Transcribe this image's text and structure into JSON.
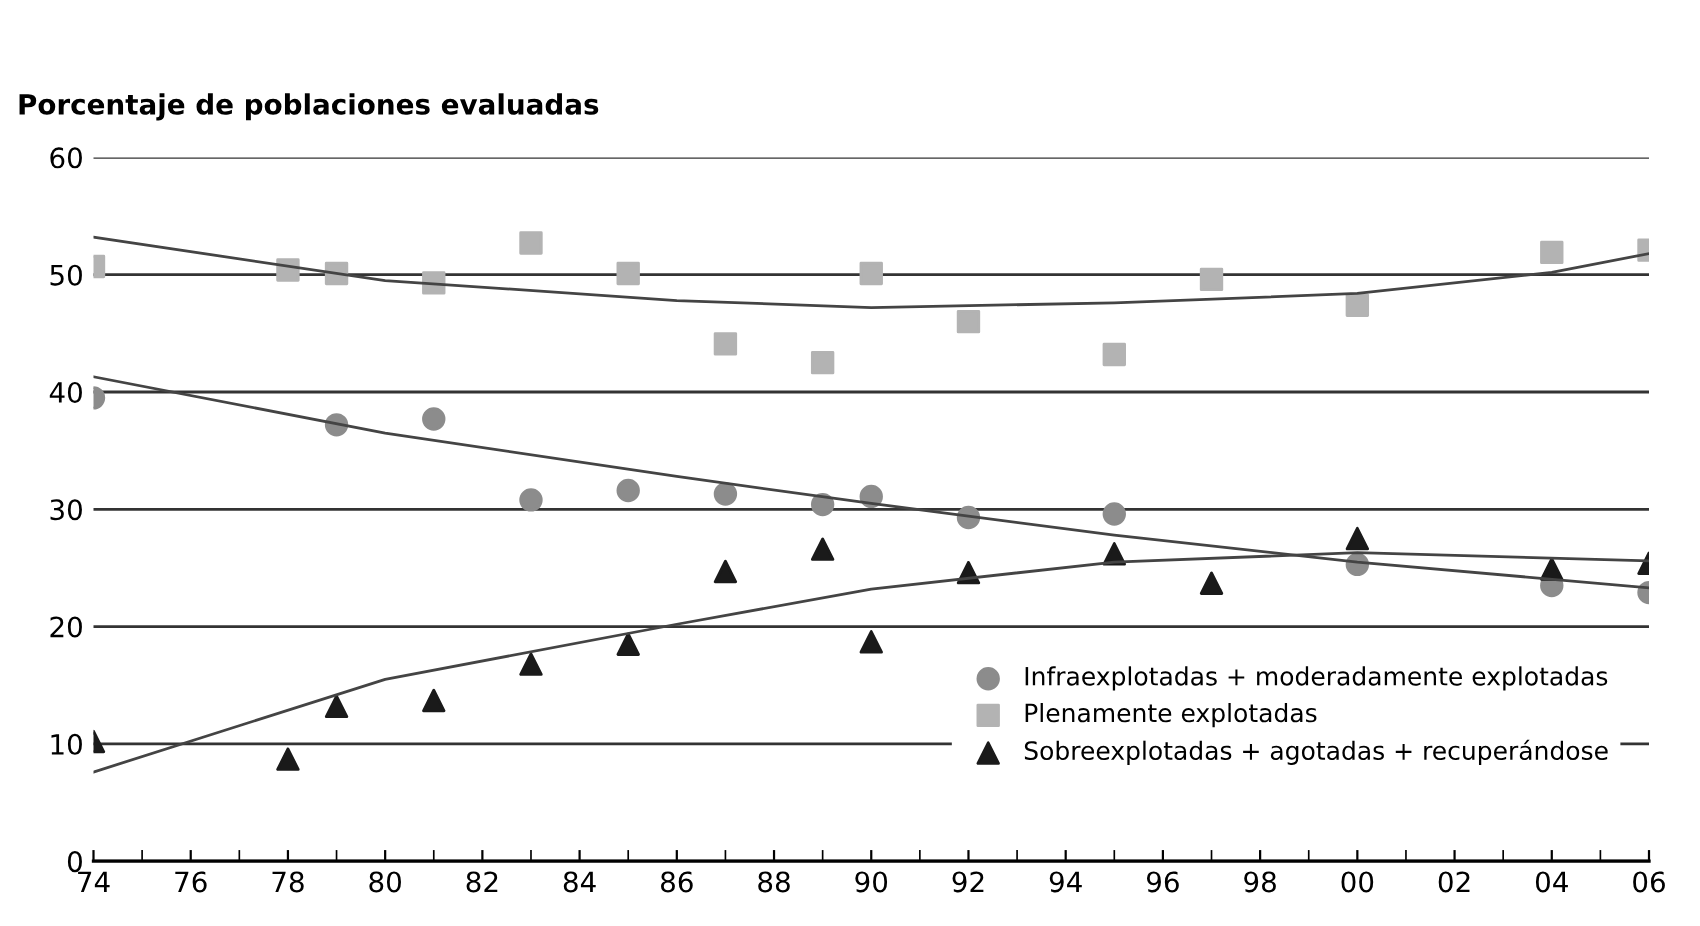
{
  "chart_data": {
    "type": "scatter",
    "title": "Porcentaje de poblaciones evaluadas",
    "xlim": [
      1974,
      2006
    ],
    "xticks": [
      {
        "value": 1974,
        "label": "74"
      },
      {
        "value": 1976,
        "label": "76"
      },
      {
        "value": 1978,
        "label": "78"
      },
      {
        "value": 1980,
        "label": "80"
      },
      {
        "value": 1982,
        "label": "82"
      },
      {
        "value": 1984,
        "label": "84"
      },
      {
        "value": 1986,
        "label": "86"
      },
      {
        "value": 1988,
        "label": "88"
      },
      {
        "value": 1990,
        "label": "90"
      },
      {
        "value": 1992,
        "label": "92"
      },
      {
        "value": 1994,
        "label": "94"
      },
      {
        "value": 1996,
        "label": "96"
      },
      {
        "value": 1998,
        "label": "98"
      },
      {
        "value": 2000,
        "label": "00"
      },
      {
        "value": 2002,
        "label": "02"
      },
      {
        "value": 2004,
        "label": "04"
      },
      {
        "value": 2006,
        "label": "06"
      }
    ],
    "ylim": [
      0,
      60
    ],
    "yticks": [
      0,
      10,
      20,
      30,
      40,
      50,
      60
    ],
    "grid": "y",
    "legend": "bottom right",
    "series": [
      {
        "name": "Infraexplotadas + moderadamente explotadas",
        "marker": "circle",
        "color": "#8c8c8c",
        "x": [
          1974,
          1979,
          1981,
          1983,
          1985,
          1987,
          1989,
          1990,
          1992,
          1995,
          2000,
          2004,
          2006
        ],
        "values": [
          39.5,
          37.2,
          37.7,
          30.8,
          31.6,
          31.3,
          30.4,
          31.1,
          29.3,
          29.6,
          25.3,
          23.5,
          22.9
        ]
      },
      {
        "name": "Plenamente explotadas",
        "marker": "square",
        "color": "#b3b3b3",
        "x": [
          1974,
          1978,
          1979,
          1981,
          1983,
          1985,
          1987,
          1989,
          1990,
          1992,
          1995,
          1997,
          2000,
          2004,
          2006
        ],
        "values": [
          50.7,
          50.4,
          50.1,
          49.3,
          52.7,
          50.1,
          44.1,
          42.5,
          50.1,
          46.0,
          43.2,
          49.6,
          47.4,
          51.9,
          52.1
        ]
      },
      {
        "name": "Sobreexplotadas + agotadas + recuperándose",
        "marker": "triangle",
        "color": "#1a1a1a",
        "x": [
          1974,
          1978,
          1979,
          1981,
          1983,
          1985,
          1987,
          1989,
          1990,
          1992,
          1995,
          1997,
          2000,
          2004,
          2006
        ],
        "values": [
          10.2,
          8.7,
          13.2,
          13.7,
          16.8,
          18.5,
          24.7,
          26.6,
          18.7,
          24.6,
          26.2,
          23.7,
          27.5,
          24.9,
          25.4
        ]
      },
      {
        "type": "line",
        "marker": "none",
        "color": "#444444",
        "x": [
          1974,
          1980,
          1986,
          1990,
          1995,
          2000,
          2006
        ],
        "values": [
          41.3,
          36.5,
          32.8,
          30.5,
          27.8,
          25.5,
          23.3
        ]
      },
      {
        "type": "line",
        "marker": "none",
        "color": "#444444",
        "x": [
          1974,
          1980,
          1986,
          1990,
          1995,
          2000,
          2004,
          2006
        ],
        "values": [
          53.2,
          49.5,
          47.8,
          47.2,
          47.6,
          48.4,
          50.2,
          51.8
        ]
      },
      {
        "type": "line",
        "marker": "none",
        "color": "#444444",
        "x": [
          1974,
          1980,
          1986,
          1990,
          1995,
          2000,
          2006
        ],
        "values": [
          7.6,
          15.5,
          20.2,
          23.2,
          25.5,
          26.3,
          25.6
        ]
      }
    ]
  }
}
